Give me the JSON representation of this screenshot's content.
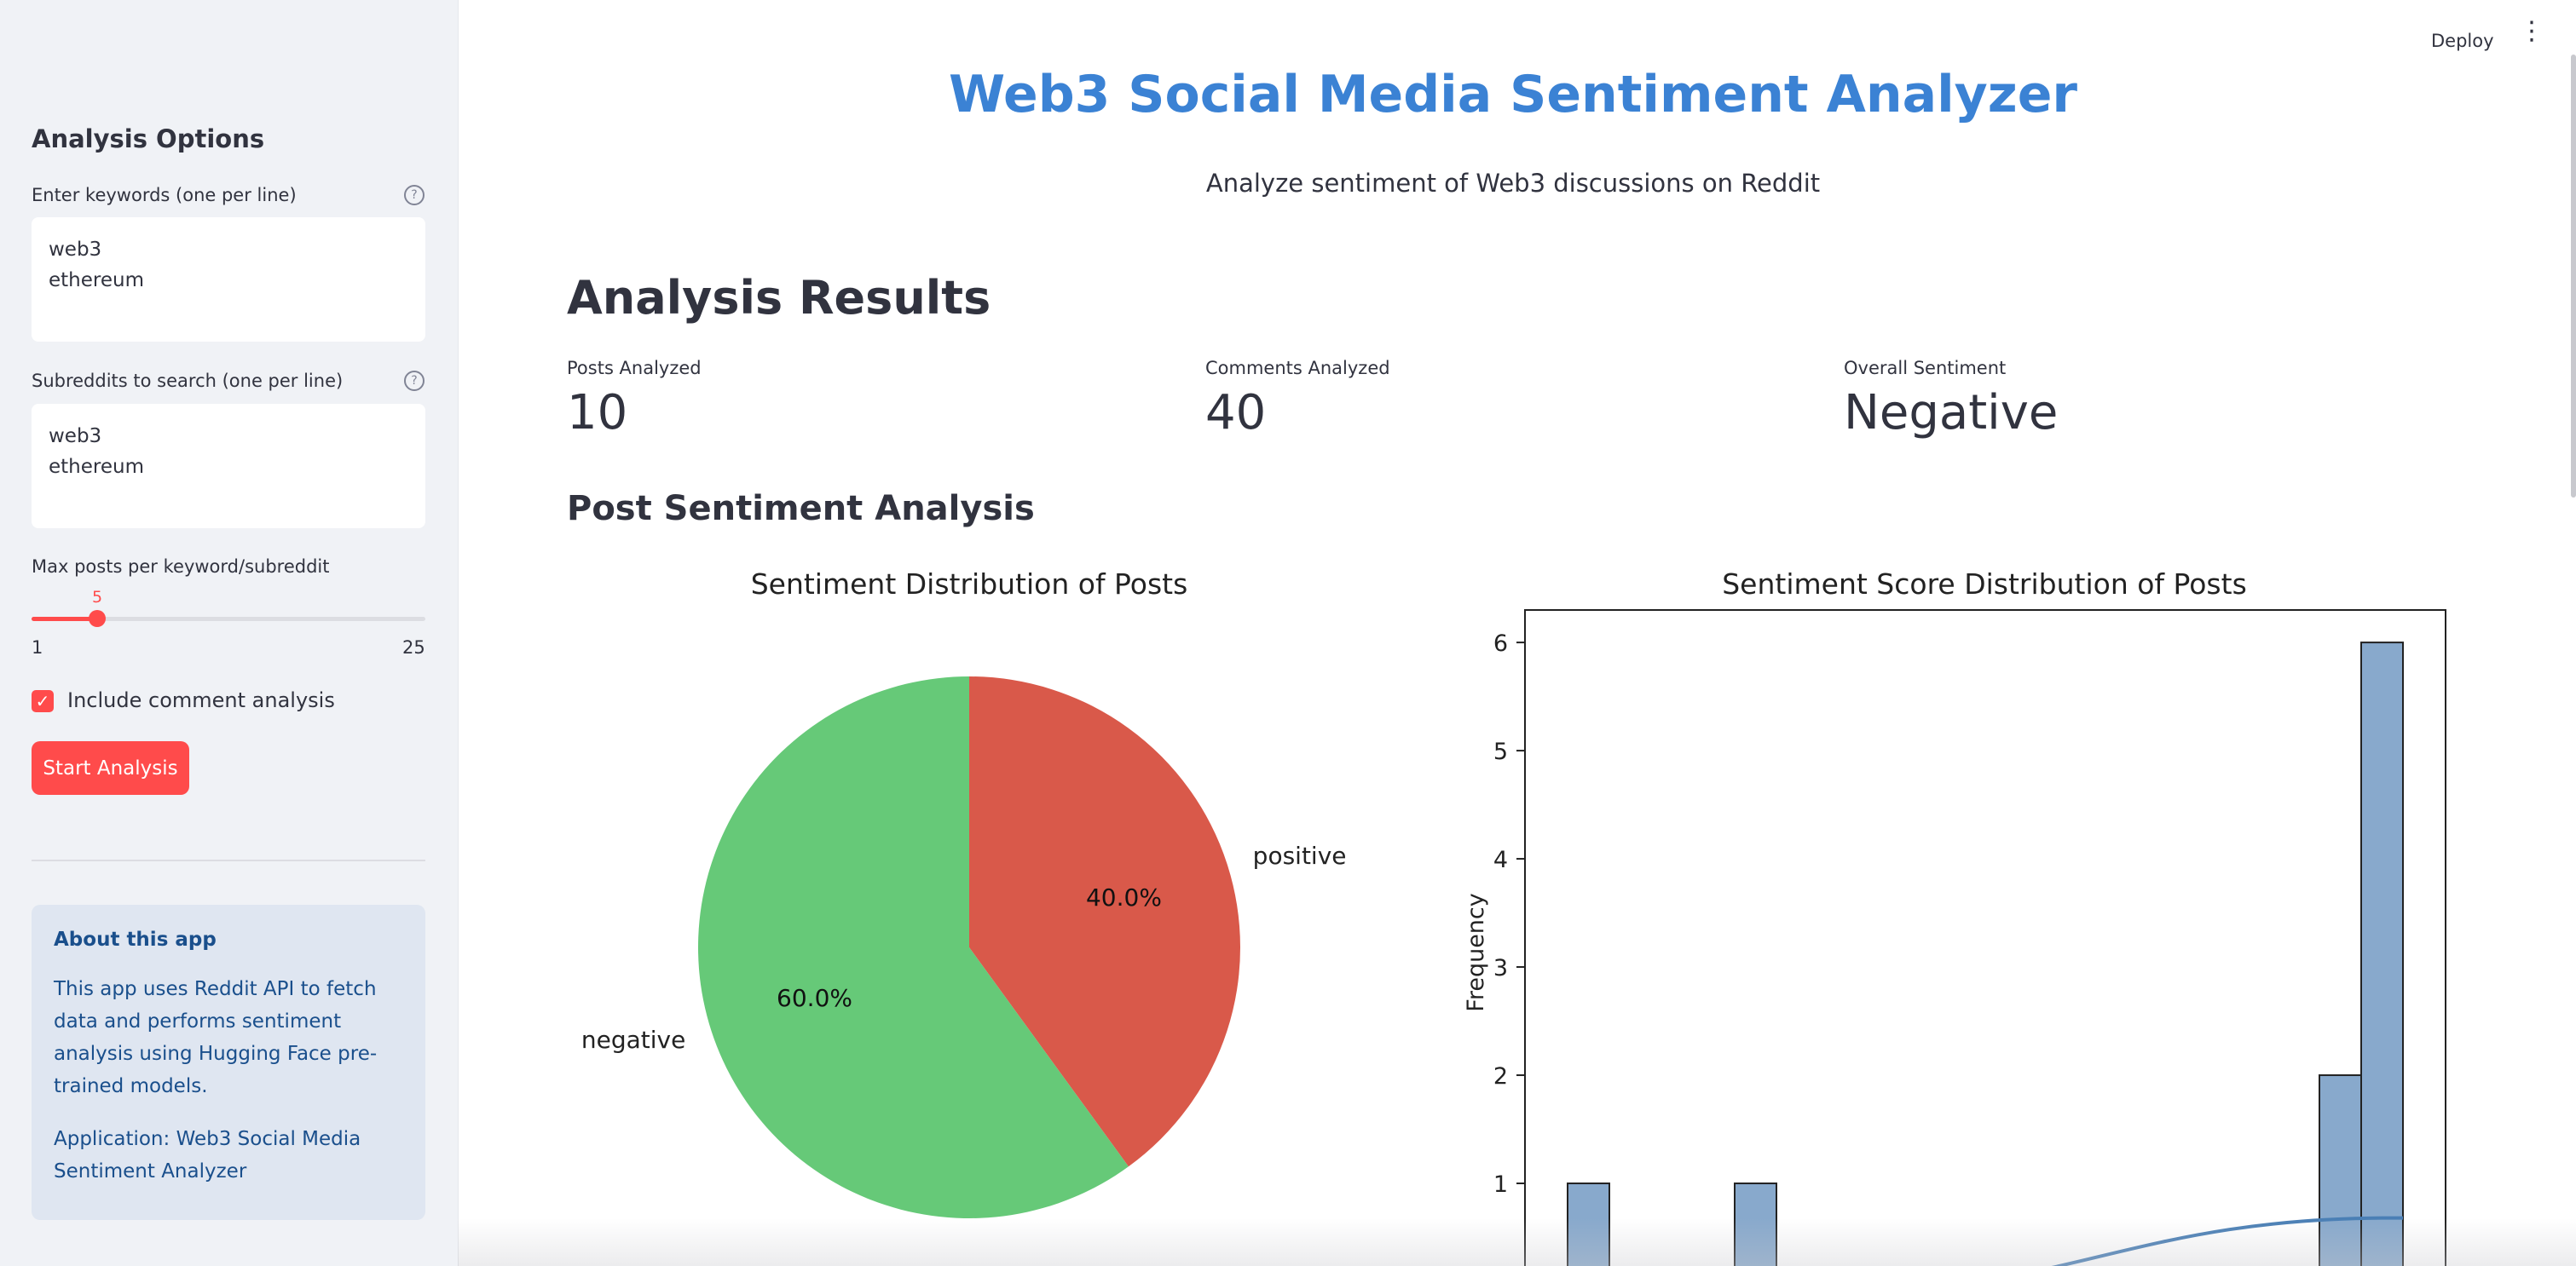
{
  "sidebar": {
    "heading": "Analysis Options",
    "keywords": {
      "label": "Enter keywords (one per line)",
      "value": "web3\nethereum",
      "help_icon": "help-circle-icon"
    },
    "subreddits": {
      "label": "Subreddits to search (one per line)",
      "value": "web3\nethereum",
      "help_icon": "help-circle-icon"
    },
    "max_posts": {
      "label": "Max posts per keyword/subreddit",
      "value": 5,
      "value_text": "5",
      "min": 1,
      "max": 25,
      "min_text": "1",
      "max_text": "25"
    },
    "include_comments": {
      "label": "Include comment analysis",
      "checked": true
    },
    "start_button": "Start Analysis",
    "about": {
      "title": "About this app",
      "body": "This app uses Reddit API to fetch data and performs sentiment analysis using Hugging Face pre-trained models.",
      "application": "Application: Web3 Social Media Sentiment Analyzer"
    }
  },
  "header": {
    "deploy": "Deploy",
    "menu_icon": "more-vertical-icon"
  },
  "main": {
    "title": "Web3 Social Media Sentiment Analyzer",
    "subtitle": "Analyze sentiment of Web3 discussions on Reddit",
    "results_heading": "Analysis Results",
    "metrics": [
      {
        "label": "Posts Analyzed",
        "value": "10"
      },
      {
        "label": "Comments Analyzed",
        "value": "40"
      },
      {
        "label": "Overall Sentiment",
        "value": "Negative"
      }
    ],
    "post_section_heading": "Post Sentiment Analysis"
  },
  "colors": {
    "accent": "#ff4b4b",
    "title_blue": "#3b82d4",
    "positive": "#d9594a",
    "negative": "#66c978",
    "hist_bar": "#88a9cc",
    "kde_line": "#4a7fb5"
  },
  "chart_data": [
    {
      "type": "pie",
      "title": "Sentiment Distribution of Posts",
      "labels": [
        "positive",
        "negative"
      ],
      "values": [
        40.0,
        60.0
      ],
      "value_labels": [
        "40.0%",
        "60.0%"
      ]
    },
    {
      "type": "bar",
      "title": "Sentiment Score Distribution of Posts",
      "ylabel": "Frequency",
      "xlabel": "",
      "ylim": [
        0,
        6.3
      ],
      "yticks": [
        "1",
        "2",
        "3",
        "4",
        "5",
        "6"
      ],
      "bars": [
        1,
        1,
        2,
        6
      ],
      "grid": false
    }
  ]
}
